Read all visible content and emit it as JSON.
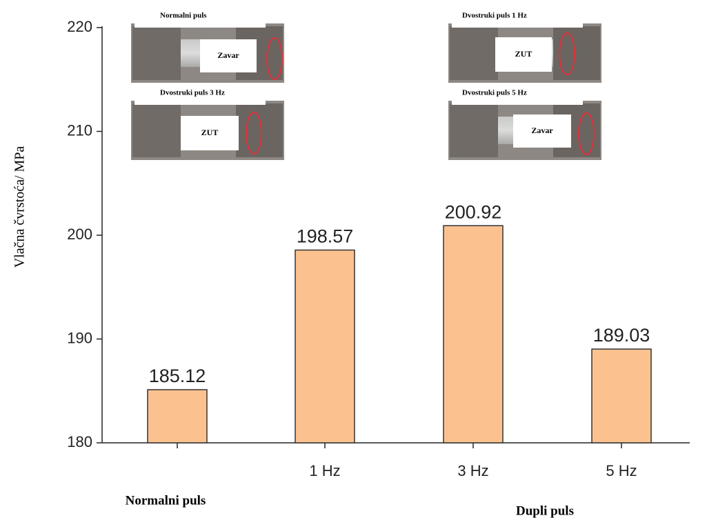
{
  "chart_data": {
    "type": "bar",
    "categories": [
      null,
      "1 Hz",
      "3 Hz",
      "5 Hz"
    ],
    "values": [
      185.12,
      198.57,
      200.92,
      189.03
    ],
    "color": "#fbc290",
    "ylim": [
      180,
      220
    ],
    "yticks": [
      180,
      190,
      200,
      210,
      220
    ],
    "ylabel": "Vlačna čvrstoća/ MPa",
    "group_labels": [
      "Normalni puls",
      "Dupli puls"
    ],
    "insets": [
      {
        "title": "Normalni puls",
        "label": "Zavar"
      },
      {
        "title": "Dvostruki puls 1 Hz",
        "label": "ZUT"
      },
      {
        "title": "Dvostruki puls 3 Hz",
        "label": "ZUT"
      },
      {
        "title": "Dvostruki puls 5 Hz",
        "label": "Zavar"
      }
    ]
  }
}
